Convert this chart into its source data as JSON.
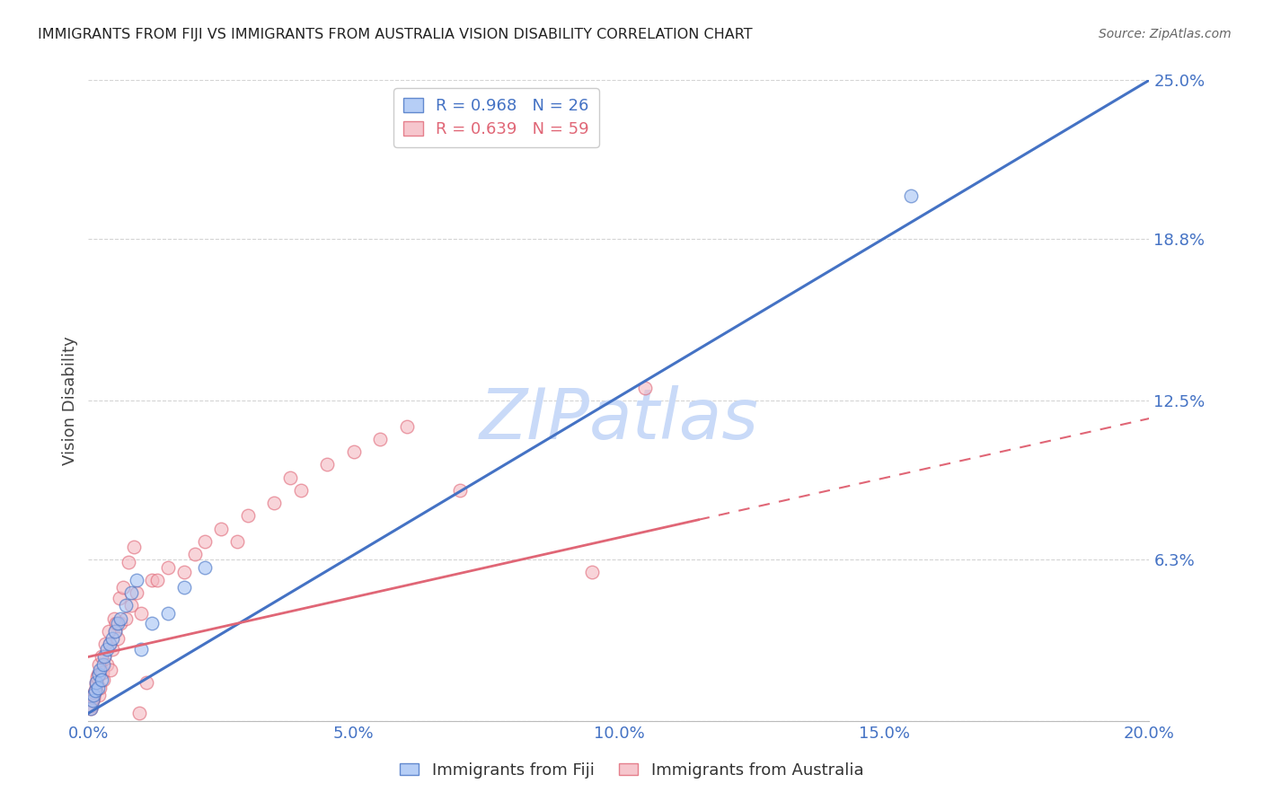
{
  "title": "IMMIGRANTS FROM FIJI VS IMMIGRANTS FROM AUSTRALIA VISION DISABILITY CORRELATION CHART",
  "source": "Source: ZipAtlas.com",
  "ylabel": "Vision Disability",
  "xlabel_ticks": [
    "0.0%",
    "5.0%",
    "10.0%",
    "15.0%",
    "20.0%"
  ],
  "xlabel_vals": [
    0.0,
    5.0,
    10.0,
    15.0,
    20.0
  ],
  "ytick_vals": [
    0.0,
    6.3,
    12.5,
    18.8,
    25.0
  ],
  "ytick_labels": [
    "",
    "6.3%",
    "12.5%",
    "18.8%",
    "25.0%"
  ],
  "xlim": [
    0.0,
    20.0
  ],
  "ylim": [
    0.0,
    25.0
  ],
  "fiji_color": "#a4c2f4",
  "fiji_line_color": "#4472c4",
  "australia_color": "#f4b8c1",
  "australia_line_color": "#e06676",
  "fiji_R": 0.968,
  "fiji_N": 26,
  "australia_R": 0.639,
  "australia_N": 59,
  "watermark": "ZIPatlas",
  "watermark_color": "#c9daf8",
  "fiji_scatter_x": [
    0.05,
    0.08,
    0.1,
    0.12,
    0.15,
    0.18,
    0.2,
    0.22,
    0.25,
    0.28,
    0.3,
    0.35,
    0.4,
    0.45,
    0.5,
    0.55,
    0.6,
    0.7,
    0.8,
    0.9,
    1.0,
    1.2,
    1.5,
    1.8,
    2.2,
    15.5
  ],
  "fiji_scatter_y": [
    0.5,
    0.8,
    1.0,
    1.2,
    1.5,
    1.3,
    1.8,
    2.0,
    1.6,
    2.2,
    2.5,
    2.8,
    3.0,
    3.2,
    3.5,
    3.8,
    4.0,
    4.5,
    5.0,
    5.5,
    2.8,
    3.8,
    4.2,
    5.2,
    6.0,
    20.5
  ],
  "australia_scatter_x": [
    0.05,
    0.08,
    0.1,
    0.12,
    0.15,
    0.18,
    0.2,
    0.22,
    0.25,
    0.28,
    0.3,
    0.35,
    0.4,
    0.45,
    0.5,
    0.55,
    0.6,
    0.7,
    0.8,
    0.9,
    1.0,
    1.2,
    1.5,
    1.8,
    2.0,
    2.2,
    2.5,
    2.8,
    3.0,
    3.5,
    3.8,
    4.0,
    4.5,
    5.0,
    5.5,
    6.0,
    7.0,
    0.06,
    0.09,
    0.11,
    0.14,
    0.17,
    0.19,
    0.24,
    0.27,
    0.32,
    0.38,
    0.42,
    0.48,
    0.52,
    0.58,
    0.65,
    0.75,
    0.85,
    0.95,
    1.1,
    1.3,
    9.5,
    10.5
  ],
  "australia_scatter_y": [
    0.5,
    0.8,
    1.0,
    1.2,
    1.5,
    1.8,
    1.0,
    1.3,
    2.0,
    1.6,
    2.5,
    2.2,
    3.0,
    2.8,
    3.5,
    3.2,
    3.8,
    4.0,
    4.5,
    5.0,
    4.2,
    5.5,
    6.0,
    5.8,
    6.5,
    7.0,
    7.5,
    7.0,
    8.0,
    8.5,
    9.5,
    9.0,
    10.0,
    10.5,
    11.0,
    11.5,
    9.0,
    0.6,
    0.9,
    1.1,
    1.4,
    1.7,
    2.2,
    2.5,
    1.9,
    3.0,
    3.5,
    2.0,
    4.0,
    3.8,
    4.8,
    5.2,
    6.2,
    6.8,
    0.3,
    1.5,
    5.5,
    5.8,
    13.0
  ],
  "fiji_line_x0": 0.0,
  "fiji_line_y0": 0.3,
  "fiji_line_x1": 20.0,
  "fiji_line_y1": 25.0,
  "australia_line_x0": 0.0,
  "australia_line_y0": 2.5,
  "australia_line_x1": 20.0,
  "australia_line_y1": 11.8,
  "australia_solid_end_x": 11.5,
  "background_color": "#ffffff",
  "grid_color": "#d0d0d0",
  "axis_label_color": "#4472c4",
  "title_color": "#222222"
}
